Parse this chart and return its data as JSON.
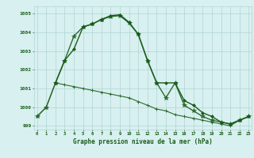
{
  "line1": {
    "x": [
      0,
      1,
      2,
      3,
      4,
      5,
      6,
      7,
      8,
      9,
      10,
      11,
      12,
      13,
      14,
      15,
      16,
      17,
      18,
      19,
      20,
      21,
      22,
      23
    ],
    "y": [
      999.5,
      1000.0,
      1001.3,
      1001.2,
      1001.1,
      1001.0,
      1000.9,
      1000.8,
      1000.7,
      1000.6,
      1000.5,
      1000.3,
      1000.1,
      999.9,
      999.8,
      999.6,
      999.5,
      999.4,
      999.3,
      999.2,
      999.1,
      999.0,
      999.3,
      999.5
    ],
    "color": "#2d6a2d",
    "linewidth": 0.8,
    "marker": "+"
  },
  "line2": {
    "x": [
      0,
      1,
      2,
      3,
      4,
      5,
      6,
      7,
      8,
      9,
      10,
      11,
      12,
      13,
      14,
      15,
      16,
      17,
      18,
      19,
      20,
      21,
      22,
      23
    ],
    "y": [
      999.5,
      1000.0,
      1001.3,
      1002.5,
      1003.8,
      1004.3,
      1004.45,
      1004.7,
      1004.85,
      1004.9,
      1004.5,
      1003.9,
      1002.5,
      1001.3,
      1000.5,
      1001.3,
      1000.1,
      999.8,
      999.5,
      999.3,
      999.2,
      999.1,
      999.3,
      999.5
    ],
    "color": "#2d6a2d",
    "linewidth": 1.0,
    "marker": "*"
  },
  "line3": {
    "x": [
      2,
      3,
      4,
      5,
      6,
      7,
      8,
      9,
      10,
      11,
      12,
      13,
      14,
      15,
      16,
      17,
      18,
      19,
      20,
      21,
      22,
      23
    ],
    "y": [
      1001.3,
      1002.5,
      1003.1,
      1004.3,
      1004.45,
      1004.7,
      1004.9,
      1004.95,
      1004.55,
      1003.9,
      1002.5,
      1001.3,
      1001.3,
      1001.3,
      1000.35,
      1000.1,
      999.7,
      999.5,
      999.2,
      999.1,
      999.3,
      999.5
    ],
    "color": "#1a5c1a",
    "linewidth": 1.0,
    "marker": "D"
  },
  "ylim": [
    998.8,
    1005.4
  ],
  "xlim": [
    -0.3,
    23.3
  ],
  "yticks": [
    999,
    1000,
    1001,
    1002,
    1003,
    1004,
    1005
  ],
  "xticks": [
    0,
    1,
    2,
    3,
    4,
    5,
    6,
    7,
    8,
    9,
    10,
    11,
    12,
    13,
    14,
    15,
    16,
    17,
    18,
    19,
    20,
    21,
    22,
    23
  ],
  "xlabel": "Graphe pression niveau de la mer (hPa)",
  "bg_color": "#d8f0f0",
  "grid_color": "#b0d4d4",
  "text_color": "#1a5c1a",
  "title_color": "#1a5c1a"
}
